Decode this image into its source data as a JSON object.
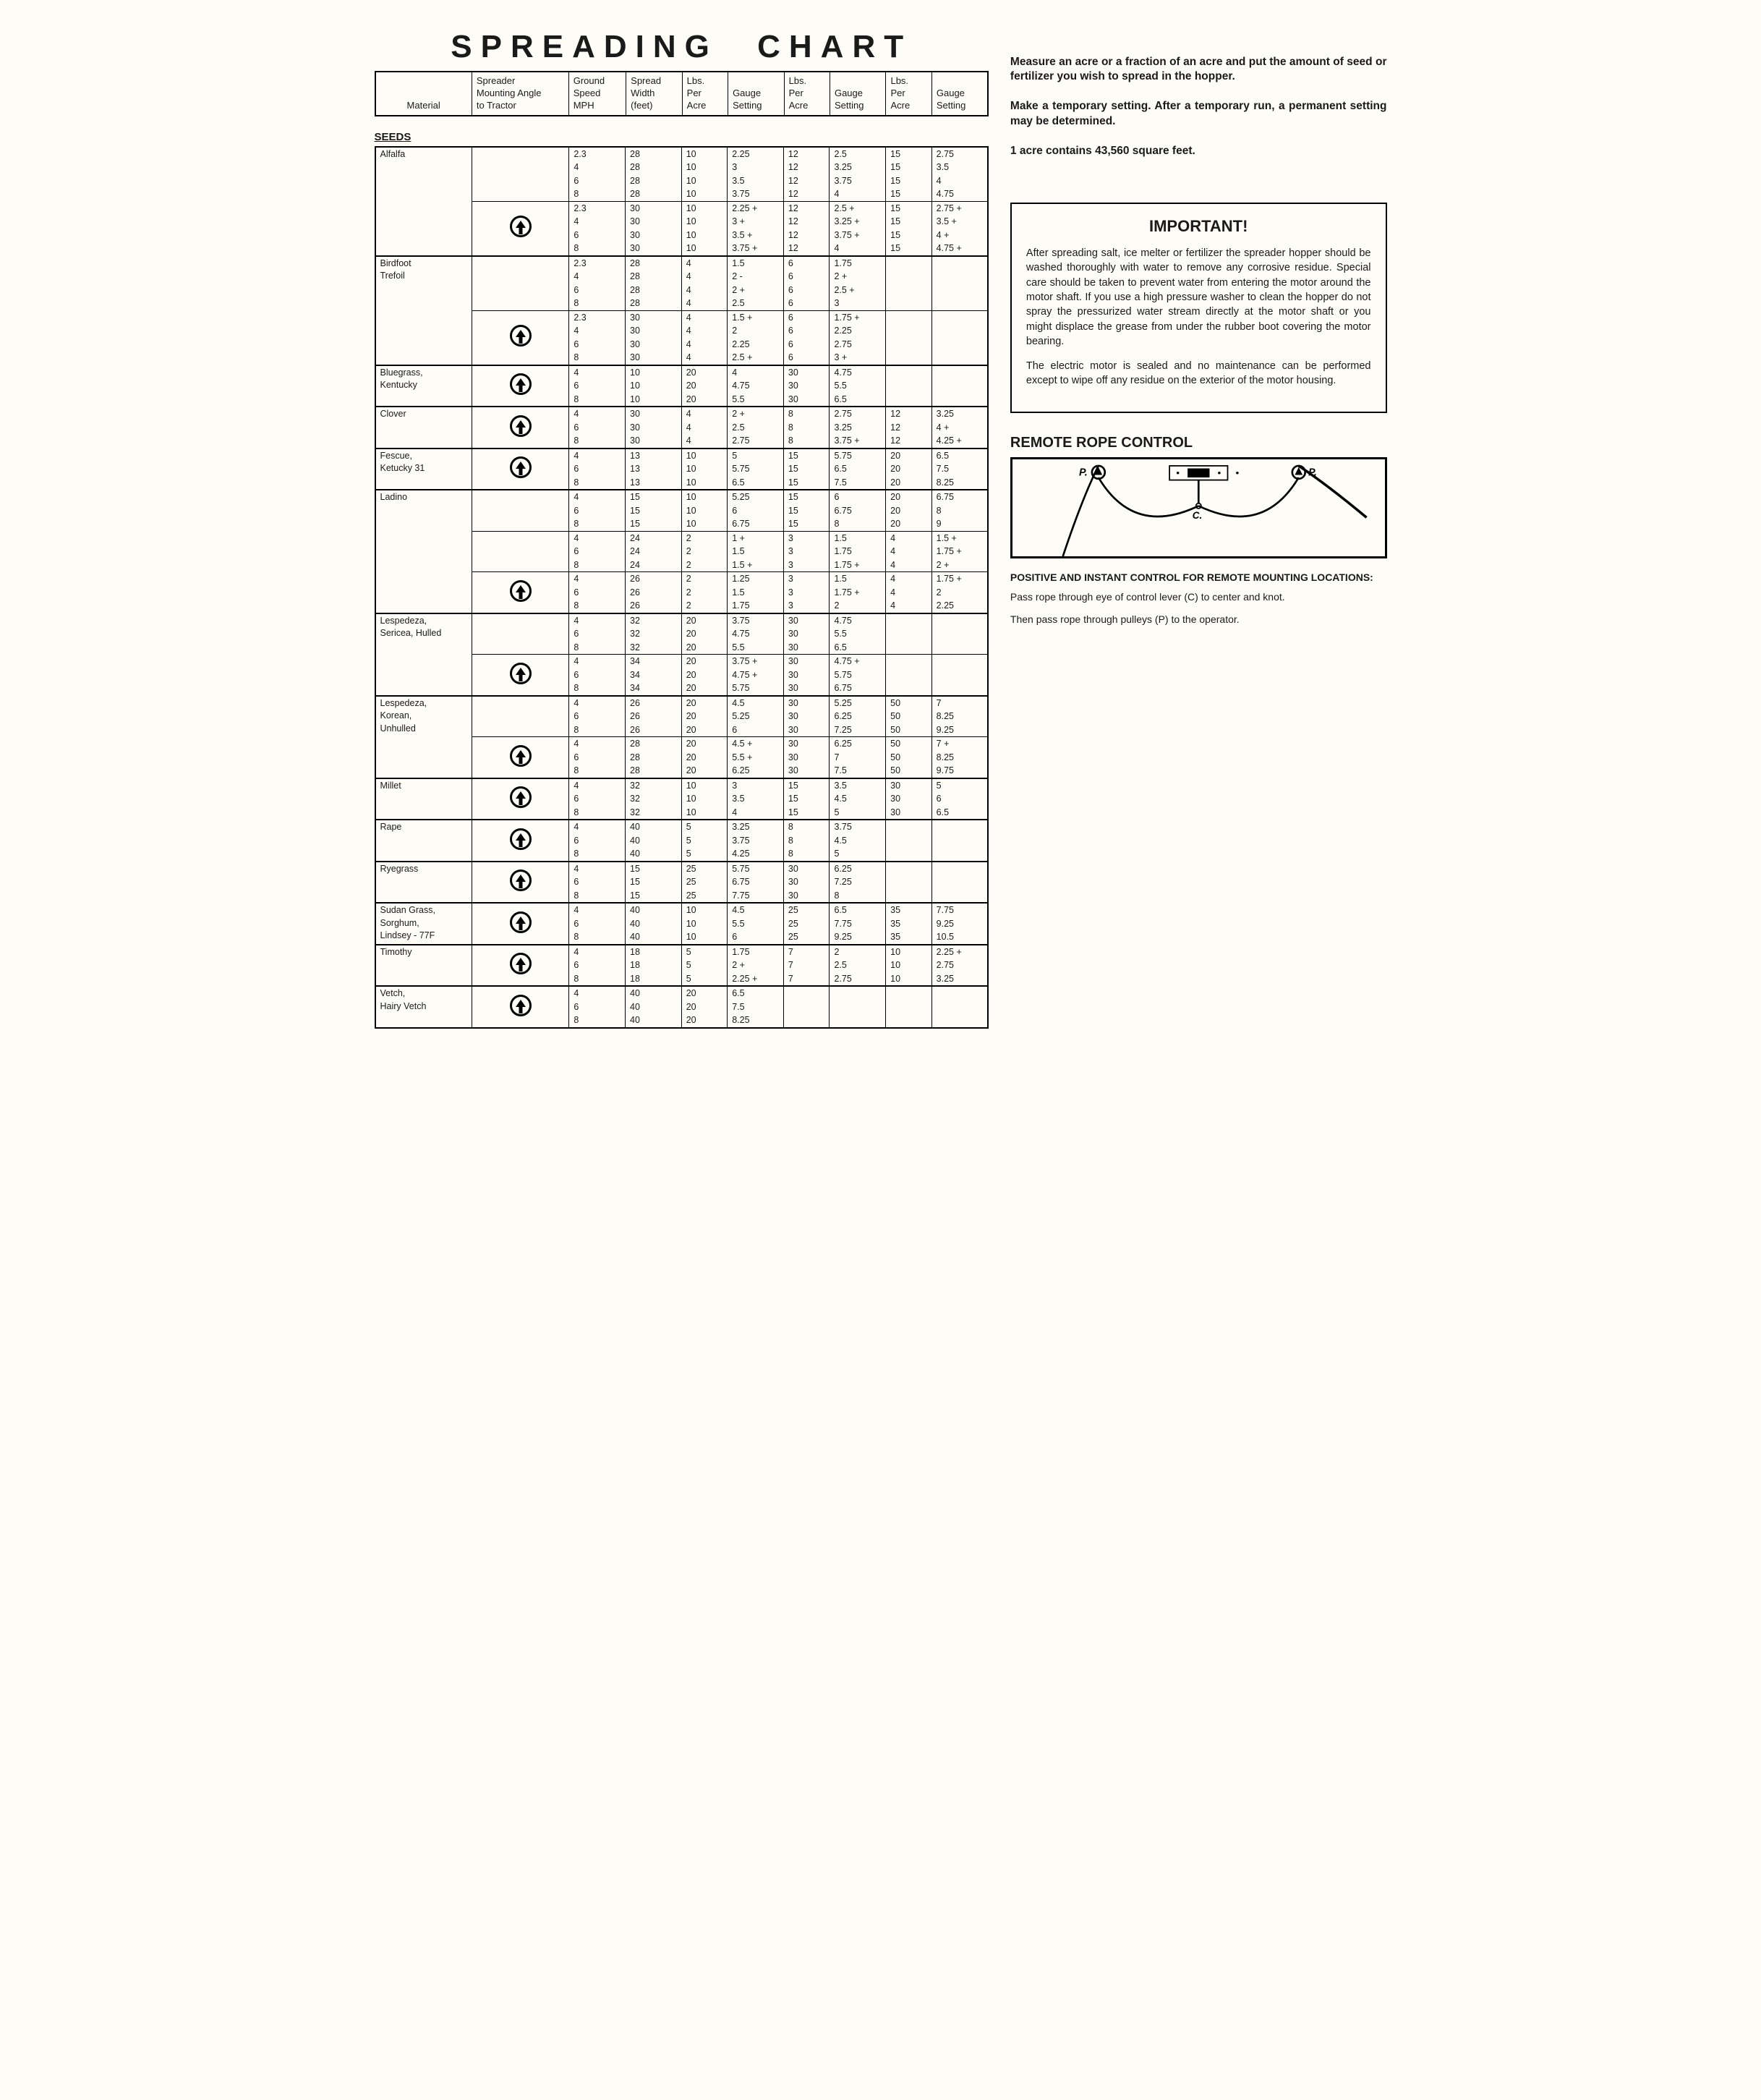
{
  "title": "SPREADING CHART",
  "headers": {
    "material": "Material",
    "angle": "Spreader\nMounting Angle\nto Tractor",
    "speed": "Ground\nSpeed\nMPH",
    "width": "Spread\nWidth\n(feet)",
    "lbs": "Lbs.\nPer\nAcre",
    "gauge": "Gauge\nSetting"
  },
  "section_heading": "SEEDS",
  "materials": [
    {
      "name": "Alfalfa",
      "groups": [
        {
          "arrow": false,
          "rows": [
            {
              "sp": "2.3",
              "w": "28",
              "l1": "10",
              "g1": "2.25",
              "l2": "12",
              "g2": "2.5",
              "l3": "15",
              "g3": "2.75"
            },
            {
              "sp": "4",
              "w": "28",
              "l1": "10",
              "g1": "3",
              "l2": "12",
              "g2": "3.25",
              "l3": "15",
              "g3": "3.5"
            },
            {
              "sp": "6",
              "w": "28",
              "l1": "10",
              "g1": "3.5",
              "l2": "12",
              "g2": "3.75",
              "l3": "15",
              "g3": "4"
            },
            {
              "sp": "8",
              "w": "28",
              "l1": "10",
              "g1": "3.75",
              "l2": "12",
              "g2": "4",
              "l3": "15",
              "g3": "4.75"
            }
          ]
        },
        {
          "arrow": true,
          "rows": [
            {
              "sp": "2.3",
              "w": "30",
              "l1": "10",
              "g1": "2.25 +",
              "l2": "12",
              "g2": "2.5 +",
              "l3": "15",
              "g3": "2.75 +"
            },
            {
              "sp": "4",
              "w": "30",
              "l1": "10",
              "g1": "3 +",
              "l2": "12",
              "g2": "3.25 +",
              "l3": "15",
              "g3": "3.5 +"
            },
            {
              "sp": "6",
              "w": "30",
              "l1": "10",
              "g1": "3.5 +",
              "l2": "12",
              "g2": "3.75 +",
              "l3": "15",
              "g3": "4 +"
            },
            {
              "sp": "8",
              "w": "30",
              "l1": "10",
              "g1": "3.75 +",
              "l2": "12",
              "g2": "4",
              "l3": "15",
              "g3": "4.75 +"
            }
          ]
        }
      ]
    },
    {
      "name": "Birdfoot\nTrefoil",
      "groups": [
        {
          "arrow": false,
          "no_col3": true,
          "rows": [
            {
              "sp": "2.3",
              "w": "28",
              "l1": "4",
              "g1": "1.5",
              "l2": "6",
              "g2": "1.75"
            },
            {
              "sp": "4",
              "w": "28",
              "l1": "4",
              "g1": "2 -",
              "l2": "6",
              "g2": "2 +"
            },
            {
              "sp": "6",
              "w": "28",
              "l1": "4",
              "g1": "2 +",
              "l2": "6",
              "g2": "2.5 +"
            },
            {
              "sp": "8",
              "w": "28",
              "l1": "4",
              "g1": "2.5",
              "l2": "6",
              "g2": "3"
            }
          ]
        },
        {
          "arrow": true,
          "no_col3": true,
          "rows": [
            {
              "sp": "2.3",
              "w": "30",
              "l1": "4",
              "g1": "1.5 +",
              "l2": "6",
              "g2": "1.75 +"
            },
            {
              "sp": "4",
              "w": "30",
              "l1": "4",
              "g1": "2",
              "l2": "6",
              "g2": "2.25"
            },
            {
              "sp": "6",
              "w": "30",
              "l1": "4",
              "g1": "2.25",
              "l2": "6",
              "g2": "2.75"
            },
            {
              "sp": "8",
              "w": "30",
              "l1": "4",
              "g1": "2.5 +",
              "l2": "6",
              "g2": "3 +"
            }
          ]
        }
      ]
    },
    {
      "name": "Bluegrass,\nKentucky",
      "groups": [
        {
          "arrow": true,
          "no_col3": true,
          "rows": [
            {
              "sp": "4",
              "w": "10",
              "l1": "20",
              "g1": "4",
              "l2": "30",
              "g2": "4.75"
            },
            {
              "sp": "6",
              "w": "10",
              "l1": "20",
              "g1": "4.75",
              "l2": "30",
              "g2": "5.5"
            },
            {
              "sp": "8",
              "w": "10",
              "l1": "20",
              "g1": "5.5",
              "l2": "30",
              "g2": "6.5"
            }
          ]
        }
      ]
    },
    {
      "name": "Clover",
      "groups": [
        {
          "arrow": true,
          "rows": [
            {
              "sp": "4",
              "w": "30",
              "l1": "4",
              "g1": "2 +",
              "l2": "8",
              "g2": "2.75",
              "l3": "12",
              "g3": "3.25"
            },
            {
              "sp": "6",
              "w": "30",
              "l1": "4",
              "g1": "2.5",
              "l2": "8",
              "g2": "3.25",
              "l3": "12",
              "g3": "4 +"
            },
            {
              "sp": "8",
              "w": "30",
              "l1": "4",
              "g1": "2.75",
              "l2": "8",
              "g2": "3.75 +",
              "l3": "12",
              "g3": "4.25 +"
            }
          ]
        }
      ]
    },
    {
      "name": "Fescue,\nKetucky 31",
      "groups": [
        {
          "arrow": true,
          "rows": [
            {
              "sp": "4",
              "w": "13",
              "l1": "10",
              "g1": "5",
              "l2": "15",
              "g2": "5.75",
              "l3": "20",
              "g3": "6.5"
            },
            {
              "sp": "6",
              "w": "13",
              "l1": "10",
              "g1": "5.75",
              "l2": "15",
              "g2": "6.5",
              "l3": "20",
              "g3": "7.5"
            },
            {
              "sp": "8",
              "w": "13",
              "l1": "10",
              "g1": "6.5",
              "l2": "15",
              "g2": "7.5",
              "l3": "20",
              "g3": "8.25"
            }
          ]
        }
      ]
    },
    {
      "name": "Ladino",
      "groups": [
        {
          "arrow": false,
          "rows": [
            {
              "sp": "4",
              "w": "15",
              "l1": "10",
              "g1": "5.25",
              "l2": "15",
              "g2": "6",
              "l3": "20",
              "g3": "6.75"
            },
            {
              "sp": "6",
              "w": "15",
              "l1": "10",
              "g1": "6",
              "l2": "15",
              "g2": "6.75",
              "l3": "20",
              "g3": "8"
            },
            {
              "sp": "8",
              "w": "15",
              "l1": "10",
              "g1": "6.75",
              "l2": "15",
              "g2": "8",
              "l3": "20",
              "g3": "9"
            }
          ]
        },
        {
          "arrow": false,
          "rows": [
            {
              "sp": "4",
              "w": "24",
              "l1": "2",
              "g1": "1 +",
              "l2": "3",
              "g2": "1.5",
              "l3": "4",
              "g3": "1.5 +"
            },
            {
              "sp": "6",
              "w": "24",
              "l1": "2",
              "g1": "1.5",
              "l2": "3",
              "g2": "1.75",
              "l3": "4",
              "g3": "1.75 +"
            },
            {
              "sp": "8",
              "w": "24",
              "l1": "2",
              "g1": "1.5 +",
              "l2": "3",
              "g2": "1.75 +",
              "l3": "4",
              "g3": "2 +"
            }
          ]
        },
        {
          "arrow": true,
          "rows": [
            {
              "sp": "4",
              "w": "26",
              "l1": "2",
              "g1": "1.25",
              "l2": "3",
              "g2": "1.5",
              "l3": "4",
              "g3": "1.75 +"
            },
            {
              "sp": "6",
              "w": "26",
              "l1": "2",
              "g1": "1.5",
              "l2": "3",
              "g2": "1.75 +",
              "l3": "4",
              "g3": "2"
            },
            {
              "sp": "8",
              "w": "26",
              "l1": "2",
              "g1": "1.75",
              "l2": "3",
              "g2": "2",
              "l3": "4",
              "g3": "2.25"
            }
          ]
        }
      ]
    },
    {
      "name": "Lespedeza,\nSericea, Hulled",
      "groups": [
        {
          "arrow": false,
          "no_col3": true,
          "rows": [
            {
              "sp": "4",
              "w": "32",
              "l1": "20",
              "g1": "3.75",
              "l2": "30",
              "g2": "4.75"
            },
            {
              "sp": "6",
              "w": "32",
              "l1": "20",
              "g1": "4.75",
              "l2": "30",
              "g2": "5.5"
            },
            {
              "sp": "8",
              "w": "32",
              "l1": "20",
              "g1": "5.5",
              "l2": "30",
              "g2": "6.5"
            }
          ]
        },
        {
          "arrow": true,
          "no_col3": true,
          "rows": [
            {
              "sp": "4",
              "w": "34",
              "l1": "20",
              "g1": "3.75 +",
              "l2": "30",
              "g2": "4.75 +"
            },
            {
              "sp": "6",
              "w": "34",
              "l1": "20",
              "g1": "4.75 +",
              "l2": "30",
              "g2": "5.75"
            },
            {
              "sp": "8",
              "w": "34",
              "l1": "20",
              "g1": "5.75",
              "l2": "30",
              "g2": "6.75"
            }
          ]
        }
      ]
    },
    {
      "name": "Lespedeza,\nKorean,\nUnhulled",
      "groups": [
        {
          "arrow": false,
          "rows": [
            {
              "sp": "4",
              "w": "26",
              "l1": "20",
              "g1": "4.5",
              "l2": "30",
              "g2": "5.25",
              "l3": "50",
              "g3": "7"
            },
            {
              "sp": "6",
              "w": "26",
              "l1": "20",
              "g1": "5.25",
              "l2": "30",
              "g2": "6.25",
              "l3": "50",
              "g3": "8.25"
            },
            {
              "sp": "8",
              "w": "26",
              "l1": "20",
              "g1": "6",
              "l2": "30",
              "g2": "7.25",
              "l3": "50",
              "g3": "9.25"
            }
          ]
        },
        {
          "arrow": true,
          "rows": [
            {
              "sp": "4",
              "w": "28",
              "l1": "20",
              "g1": "4.5 +",
              "l2": "30",
              "g2": "6.25",
              "l3": "50",
              "g3": "7 +"
            },
            {
              "sp": "6",
              "w": "28",
              "l1": "20",
              "g1": "5.5 +",
              "l2": "30",
              "g2": "7",
              "l3": "50",
              "g3": "8.25"
            },
            {
              "sp": "8",
              "w": "28",
              "l1": "20",
              "g1": "6.25",
              "l2": "30",
              "g2": "7.5",
              "l3": "50",
              "g3": "9.75"
            }
          ]
        }
      ]
    },
    {
      "name": "Millet",
      "groups": [
        {
          "arrow": true,
          "rows": [
            {
              "sp": "4",
              "w": "32",
              "l1": "10",
              "g1": "3",
              "l2": "15",
              "g2": "3.5",
              "l3": "30",
              "g3": "5"
            },
            {
              "sp": "6",
              "w": "32",
              "l1": "10",
              "g1": "3.5",
              "l2": "15",
              "g2": "4.5",
              "l3": "30",
              "g3": "6"
            },
            {
              "sp": "8",
              "w": "32",
              "l1": "10",
              "g1": "4",
              "l2": "15",
              "g2": "5",
              "l3": "30",
              "g3": "6.5"
            }
          ]
        }
      ]
    },
    {
      "name": "Rape",
      "groups": [
        {
          "arrow": true,
          "no_col3": true,
          "rows": [
            {
              "sp": "4",
              "w": "40",
              "l1": "5",
              "g1": "3.25",
              "l2": "8",
              "g2": "3.75"
            },
            {
              "sp": "6",
              "w": "40",
              "l1": "5",
              "g1": "3.75",
              "l2": "8",
              "g2": "4.5"
            },
            {
              "sp": "8",
              "w": "40",
              "l1": "5",
              "g1": "4.25",
              "l2": "8",
              "g2": "5"
            }
          ]
        }
      ]
    },
    {
      "name": "Ryegrass",
      "groups": [
        {
          "arrow": true,
          "no_col3": true,
          "rows": [
            {
              "sp": "4",
              "w": "15",
              "l1": "25",
              "g1": "5.75",
              "l2": "30",
              "g2": "6.25"
            },
            {
              "sp": "6",
              "w": "15",
              "l1": "25",
              "g1": "6.75",
              "l2": "30",
              "g2": "7.25"
            },
            {
              "sp": "8",
              "w": "15",
              "l1": "25",
              "g1": "7.75",
              "l2": "30",
              "g2": "8"
            }
          ]
        }
      ]
    },
    {
      "name": "Sudan Grass,\nSorghum,\nLindsey - 77F",
      "groups": [
        {
          "arrow": true,
          "rows": [
            {
              "sp": "4",
              "w": "40",
              "l1": "10",
              "g1": "4.5",
              "l2": "25",
              "g2": "6.5",
              "l3": "35",
              "g3": "7.75"
            },
            {
              "sp": "6",
              "w": "40",
              "l1": "10",
              "g1": "5.5",
              "l2": "25",
              "g2": "7.75",
              "l3": "35",
              "g3": "9.25"
            },
            {
              "sp": "8",
              "w": "40",
              "l1": "10",
              "g1": "6",
              "l2": "25",
              "g2": "9.25",
              "l3": "35",
              "g3": "10.5"
            }
          ]
        }
      ]
    },
    {
      "name": "Timothy",
      "groups": [
        {
          "arrow": true,
          "rows": [
            {
              "sp": "4",
              "w": "18",
              "l1": "5",
              "g1": "1.75",
              "l2": "7",
              "g2": "2",
              "l3": "10",
              "g3": "2.25 +"
            },
            {
              "sp": "6",
              "w": "18",
              "l1": "5",
              "g1": "2 +",
              "l2": "7",
              "g2": "2.5",
              "l3": "10",
              "g3": "2.75"
            },
            {
              "sp": "8",
              "w": "18",
              "l1": "5",
              "g1": "2.25 +",
              "l2": "7",
              "g2": "2.75",
              "l3": "10",
              "g3": "3.25"
            }
          ]
        }
      ]
    },
    {
      "name": "Vetch,\nHairy Vetch",
      "groups": [
        {
          "arrow": true,
          "no_col3": true,
          "rows": [
            {
              "sp": "4",
              "w": "40",
              "l1": "20",
              "g1": "6.5"
            },
            {
              "sp": "6",
              "w": "40",
              "l1": "20",
              "g1": "7.5"
            },
            {
              "sp": "8",
              "w": "40",
              "l1": "20",
              "g1": "8.25"
            }
          ]
        }
      ]
    }
  ],
  "instructions": [
    "Measure an acre or a fraction of an acre and put the amount of seed or fertilizer you wish to spread in the hopper.",
    "Make a temporary setting. After a temporary run, a permanent setting may be determined.",
    "1 acre contains 43,560 square feet."
  ],
  "important": {
    "title": "IMPORTANT!",
    "p1": "After spreading salt, ice melter or fertilizer the spreader hopper should be washed thoroughly with water to remove any corrosive residue. Special care should be taken to prevent water from entering the motor around the motor shaft. If you use a high pressure washer to clean the hopper do not spray the pressurized water stream directly at the motor shaft or you might displace the grease from under the rubber boot covering the motor bearing.",
    "p2": "The electric motor is sealed and no maintenance can be performed except to wipe off any residue on the exterior of the motor housing."
  },
  "rope": {
    "title": "REMOTE ROPE CONTROL",
    "subtitle": "POSITIVE AND INSTANT CONTROL FOR REMOTE MOUNTING LOCATIONS:",
    "p1": "Pass rope through eye of control lever (C) to center and knot.",
    "p2": "Then pass rope through pulleys (P) to the operator.",
    "labels": {
      "p_left": "P.",
      "p_right": "P.",
      "c": "C."
    }
  },
  "colors": {
    "text": "#1a1a1a",
    "bg": "#fdfcf7",
    "border": "#000000"
  }
}
